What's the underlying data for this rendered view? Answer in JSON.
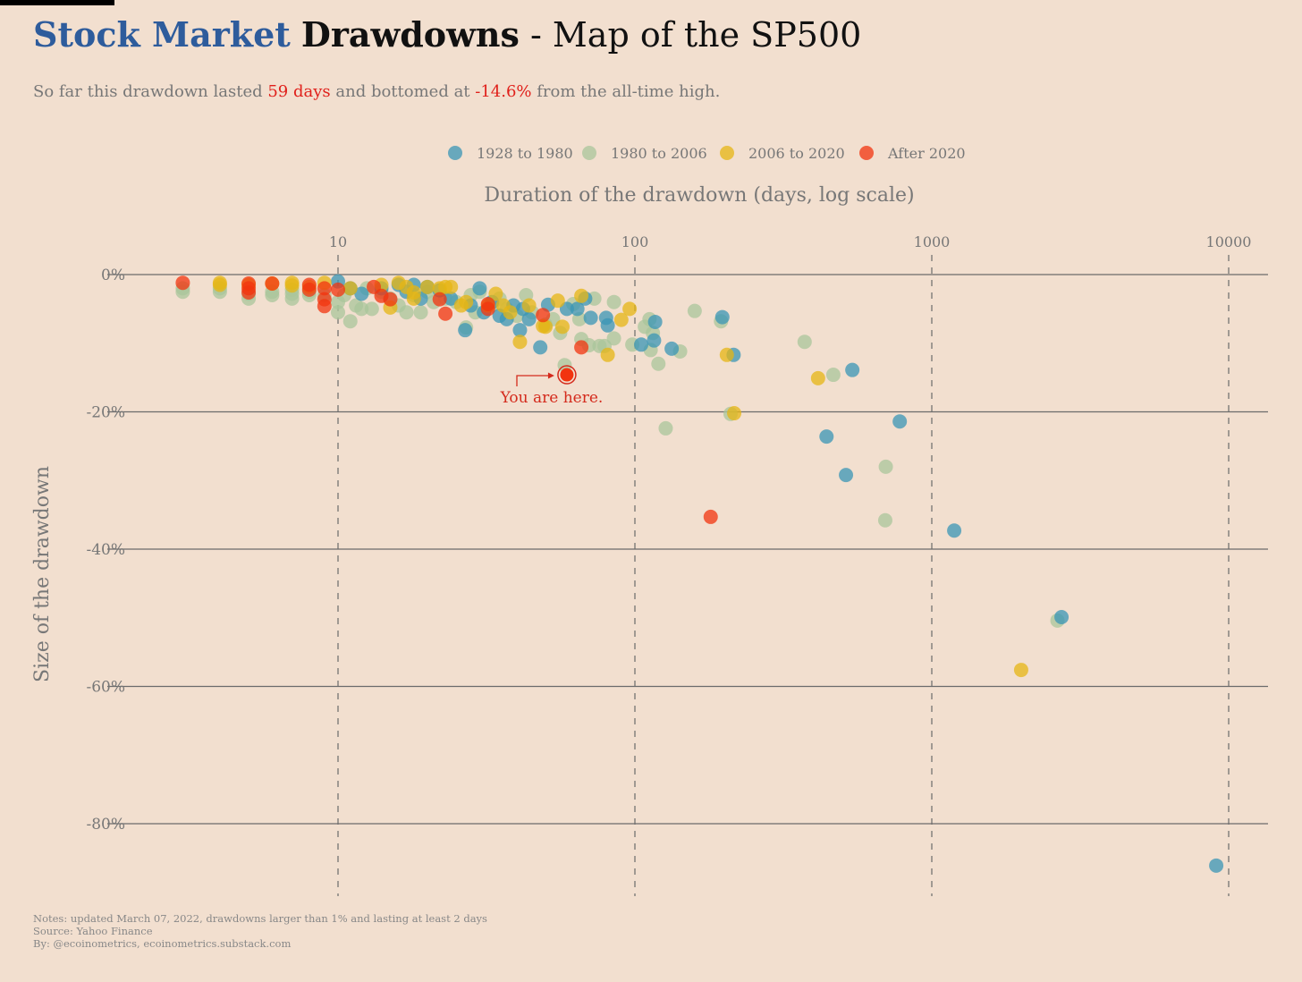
{
  "title": {
    "part1": "Stock Market",
    "part2": "Drawdowns",
    "part3": " - Map of the SP500"
  },
  "subtitle": {
    "pre": "So far this drawdown lasted ",
    "days": "59 days",
    "mid": " and bottomed at ",
    "pct": "-14.6%",
    "post": " from the all-time high."
  },
  "notes": [
    "Notes: updated March 07, 2022, drawdowns larger than 1% and lasting at least 2 days",
    "Source: Yahoo Finance",
    "By: @ecoinometrics, ecoinometrics.substack.com"
  ],
  "annotation": "You are here.",
  "chart_data": {
    "type": "scatter",
    "title": "Stock Market Drawdowns - Map of the SP500",
    "xlabel": "Duration of the drawdown (days, log scale)",
    "ylabel": "Size of the drawdown",
    "xscale": "log",
    "xlim": [
      2.5,
      12500
    ],
    "ylim": [
      -90,
      0
    ],
    "xticks": [
      {
        "v": 10,
        "label": "10"
      },
      {
        "v": 100,
        "label": "100"
      },
      {
        "v": 1000,
        "label": "1000"
      },
      {
        "v": 10000,
        "label": "10000"
      }
    ],
    "yticks": [
      {
        "v": 0,
        "label": "0%"
      },
      {
        "v": -20,
        "label": "-20%"
      },
      {
        "v": -40,
        "label": "-40%"
      },
      {
        "v": -60,
        "label": "-60%"
      },
      {
        "v": -80,
        "label": "-80%"
      }
    ],
    "legend_position": "top-center",
    "series": [
      {
        "name": "1980 to 2006",
        "color": "#a9c59b",
        "points": [
          [
            3,
            -2.5
          ],
          [
            3,
            -2
          ],
          [
            4,
            -2.5
          ],
          [
            4,
            -2
          ],
          [
            5,
            -3.5
          ],
          [
            5,
            -2.8
          ],
          [
            6,
            -3
          ],
          [
            6,
            -2.5
          ],
          [
            7,
            -3.5
          ],
          [
            7,
            -2.8
          ],
          [
            7,
            -2.2
          ],
          [
            8,
            -3
          ],
          [
            8,
            -2.5
          ],
          [
            9,
            -3
          ],
          [
            10,
            -5.5
          ],
          [
            10,
            -4
          ],
          [
            10.5,
            -3
          ],
          [
            11,
            -6.8
          ],
          [
            11.5,
            -4.5
          ],
          [
            12,
            -5
          ],
          [
            13,
            -5
          ],
          [
            12.5,
            -2
          ],
          [
            14,
            -2.5
          ],
          [
            15,
            -3.5
          ],
          [
            16,
            -4.5
          ],
          [
            17,
            -5.5
          ],
          [
            18,
            -3
          ],
          [
            19,
            -5.5
          ],
          [
            20,
            -2.5
          ],
          [
            21,
            -4
          ],
          [
            23,
            -3.5
          ],
          [
            25,
            -4
          ],
          [
            27,
            -7.7
          ],
          [
            28,
            -3
          ],
          [
            29,
            -5.5
          ],
          [
            30,
            -2.5
          ],
          [
            33,
            -4.5
          ],
          [
            35,
            -3.5
          ],
          [
            37,
            -5
          ],
          [
            40,
            -6
          ],
          [
            43,
            -3
          ],
          [
            45,
            -5.5
          ],
          [
            50,
            -7.3
          ],
          [
            53,
            -6.5
          ],
          [
            56,
            -8.5
          ],
          [
            58,
            -13.2
          ],
          [
            62,
            -4.3
          ],
          [
            65,
            -6.5
          ],
          [
            66,
            -9.4
          ],
          [
            70,
            -10.3
          ],
          [
            73,
            -3.5
          ],
          [
            76,
            -10.4
          ],
          [
            79,
            -10.4
          ],
          [
            85,
            -4
          ],
          [
            85,
            -9.3
          ],
          [
            98,
            -10.2
          ],
          [
            108,
            -7.6
          ],
          [
            112,
            -6.5
          ],
          [
            113,
            -11
          ],
          [
            115,
            -8.5
          ],
          [
            120,
            -13
          ],
          [
            127,
            -22.4
          ],
          [
            142,
            -11.2
          ],
          [
            159,
            -5.3
          ],
          [
            195,
            -6.8
          ],
          [
            210,
            -20.3
          ],
          [
            373,
            -9.8
          ],
          [
            466,
            -14.6
          ],
          [
            700,
            -28
          ],
          [
            697,
            -35.8
          ],
          [
            2650,
            -50.4
          ]
        ]
      },
      {
        "name": "1928 to 1980",
        "color": "#3a95b5",
        "points": [
          [
            10,
            -1
          ],
          [
            11,
            -2
          ],
          [
            12,
            -2.8
          ],
          [
            14,
            -2
          ],
          [
            16,
            -1.5
          ],
          [
            17,
            -2.5
          ],
          [
            18,
            -1.5
          ],
          [
            19,
            -3.5
          ],
          [
            20,
            -1.8
          ],
          [
            22,
            -2.3
          ],
          [
            24,
            -3.5
          ],
          [
            26.8,
            -8.1
          ],
          [
            28,
            -4.5
          ],
          [
            30,
            -2
          ],
          [
            31,
            -5.5
          ],
          [
            33,
            -4
          ],
          [
            35,
            -6
          ],
          [
            37,
            -6.5
          ],
          [
            39,
            -4.5
          ],
          [
            41,
            -8.1
          ],
          [
            42,
            -5
          ],
          [
            44,
            -6.5
          ],
          [
            48,
            -10.6
          ],
          [
            51,
            -4.4
          ],
          [
            59,
            -5
          ],
          [
            64,
            -5
          ],
          [
            68,
            -3.5
          ],
          [
            71,
            -6.3
          ],
          [
            80,
            -6.3
          ],
          [
            81,
            -7.4
          ],
          [
            105,
            -10.2
          ],
          [
            116,
            -9.6
          ],
          [
            117,
            -6.9
          ],
          [
            133,
            -10.8
          ],
          [
            197,
            -6.2
          ],
          [
            215,
            -11.7
          ],
          [
            442,
            -23.6
          ],
          [
            514,
            -29.2
          ],
          [
            540,
            -13.9
          ],
          [
            780,
            -21.4
          ],
          [
            1190,
            -37.3
          ],
          [
            2735,
            -49.9
          ],
          [
            9080,
            -86.1
          ]
        ]
      },
      {
        "name": "2006 to 2020",
        "color": "#e6b614",
        "points": [
          [
            4,
            -1.5
          ],
          [
            4,
            -1.2
          ],
          [
            5,
            -1.5
          ],
          [
            6,
            -1.3
          ],
          [
            7,
            -1.2
          ],
          [
            7,
            -1.6
          ],
          [
            8,
            -1.8
          ],
          [
            9,
            -1.2
          ],
          [
            11,
            -2
          ],
          [
            14,
            -1.5
          ],
          [
            15,
            -4.8
          ],
          [
            16,
            -1.2
          ],
          [
            17,
            -1.8
          ],
          [
            18,
            -2.6
          ],
          [
            18,
            -3.5
          ],
          [
            20,
            -1.8
          ],
          [
            22,
            -2
          ],
          [
            23,
            -1.8
          ],
          [
            24,
            -1.8
          ],
          [
            26,
            -4.5
          ],
          [
            27,
            -4
          ],
          [
            32,
            -4.5
          ],
          [
            34,
            -2.8
          ],
          [
            36,
            -4.5
          ],
          [
            38,
            -5.5
          ],
          [
            41,
            -9.8
          ],
          [
            44,
            -4.5
          ],
          [
            49,
            -7.5
          ],
          [
            50,
            -7.6
          ],
          [
            55,
            -3.8
          ],
          [
            57,
            -7.6
          ],
          [
            66,
            -3.1
          ],
          [
            81,
            -11.7
          ],
          [
            90,
            -6.6
          ],
          [
            96,
            -5
          ],
          [
            204,
            -11.7
          ],
          [
            216,
            -20.2
          ],
          [
            414,
            -15.1
          ],
          [
            2000,
            -57.6
          ]
        ]
      },
      {
        "name": "After 2020",
        "color": "#f2340f",
        "points": [
          [
            3,
            -1.2
          ],
          [
            5,
            -1.3
          ],
          [
            5,
            -2
          ],
          [
            5,
            -2.6
          ],
          [
            6,
            -1.3
          ],
          [
            8,
            -1.5
          ],
          [
            8,
            -2.2
          ],
          [
            9,
            -2
          ],
          [
            9,
            -3.6
          ],
          [
            9,
            -4.6
          ],
          [
            10,
            -2.2
          ],
          [
            13.2,
            -1.8
          ],
          [
            14,
            -3.1
          ],
          [
            15,
            -3.6
          ],
          [
            22,
            -3.6
          ],
          [
            23,
            -5.7
          ],
          [
            32,
            -4.3
          ],
          [
            32,
            -5
          ],
          [
            49,
            -5.9
          ],
          [
            66,
            -10.6
          ],
          [
            180,
            -35.3
          ]
        ]
      }
    ],
    "legend_order": [
      "1928 to 1980",
      "1980 to 2006",
      "2006 to 2020",
      "After 2020"
    ],
    "current": {
      "days": 59,
      "pct": -14.6
    }
  }
}
